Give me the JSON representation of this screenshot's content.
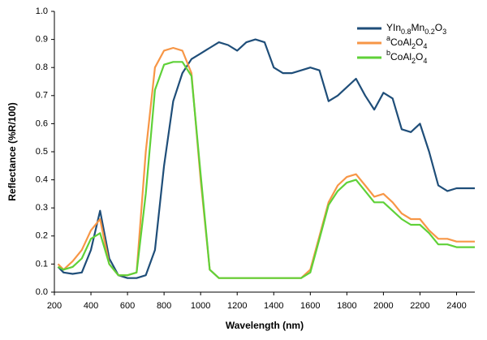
{
  "chart_data": {
    "type": "line",
    "xlabel": "Wavelength (nm)",
    "ylabel": "Reflectance (%R/100)",
    "x": [
      220,
      250,
      300,
      350,
      400,
      450,
      500,
      550,
      600,
      650,
      700,
      750,
      800,
      850,
      900,
      950,
      1000,
      1050,
      1100,
      1150,
      1200,
      1250,
      1300,
      1350,
      1400,
      1450,
      1500,
      1550,
      1600,
      1650,
      1700,
      1750,
      1800,
      1850,
      1900,
      1950,
      2000,
      2050,
      2100,
      2150,
      2200,
      2250,
      2300,
      2350,
      2400,
      2450,
      2500
    ],
    "series": [
      {
        "name": "YIn0.8Mn0.2O3",
        "color": "#1f4e79",
        "values": [
          0.09,
          0.07,
          0.065,
          0.07,
          0.15,
          0.29,
          0.12,
          0.06,
          0.05,
          0.05,
          0.06,
          0.15,
          0.45,
          0.68,
          0.78,
          0.83,
          0.85,
          0.87,
          0.89,
          0.88,
          0.86,
          0.89,
          0.9,
          0.89,
          0.8,
          0.78,
          0.78,
          0.79,
          0.8,
          0.79,
          0.68,
          0.7,
          0.73,
          0.76,
          0.7,
          0.65,
          0.71,
          0.69,
          0.58,
          0.57,
          0.6,
          0.5,
          0.38,
          0.36,
          0.37,
          0.37,
          0.37
        ]
      },
      {
        "name": "aCoAl2O4",
        "color": "#f79646",
        "values": [
          0.1,
          0.08,
          0.11,
          0.15,
          0.22,
          0.26,
          0.1,
          0.06,
          0.06,
          0.07,
          0.5,
          0.8,
          0.86,
          0.87,
          0.86,
          0.78,
          0.4,
          0.08,
          0.05,
          0.05,
          0.05,
          0.05,
          0.05,
          0.05,
          0.05,
          0.05,
          0.05,
          0.05,
          0.08,
          0.2,
          0.32,
          0.38,
          0.41,
          0.42,
          0.38,
          0.34,
          0.35,
          0.32,
          0.28,
          0.26,
          0.26,
          0.22,
          0.19,
          0.19,
          0.18,
          0.18,
          0.18
        ]
      },
      {
        "name": "bCoAl2O4",
        "color": "#5fd138",
        "values": [
          0.09,
          0.08,
          0.09,
          0.12,
          0.19,
          0.21,
          0.1,
          0.06,
          0.06,
          0.07,
          0.35,
          0.72,
          0.81,
          0.82,
          0.82,
          0.77,
          0.42,
          0.08,
          0.05,
          0.05,
          0.05,
          0.05,
          0.05,
          0.05,
          0.05,
          0.05,
          0.05,
          0.05,
          0.07,
          0.19,
          0.31,
          0.36,
          0.39,
          0.4,
          0.36,
          0.32,
          0.32,
          0.29,
          0.26,
          0.24,
          0.24,
          0.21,
          0.17,
          0.17,
          0.16,
          0.16,
          0.16
        ]
      }
    ],
    "xlim": [
      200,
      2500
    ],
    "xticks": [
      200,
      400,
      600,
      800,
      1000,
      1200,
      1400,
      1600,
      1800,
      2000,
      2200,
      2400
    ],
    "ylim": [
      0,
      1
    ],
    "yticks": [
      {
        "value": 0,
        "label": "0.0"
      },
      0.1,
      0.2,
      0.3,
      0.4,
      0.5,
      0.6,
      0.7,
      0.8,
      0.9,
      {
        "value": 1,
        "label": "1.0"
      }
    ],
    "grid": false,
    "legend": "upper right"
  }
}
